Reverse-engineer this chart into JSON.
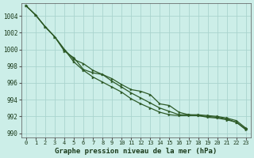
{
  "xlabel": "Graphe pression niveau de la mer (hPa)",
  "xlim": [
    -0.5,
    23.5
  ],
  "ylim": [
    989.5,
    1005.5
  ],
  "yticks": [
    990,
    992,
    994,
    996,
    998,
    1000,
    1002,
    1004
  ],
  "xticks": [
    0,
    1,
    2,
    3,
    4,
    5,
    6,
    7,
    8,
    9,
    10,
    11,
    12,
    13,
    14,
    15,
    16,
    17,
    18,
    19,
    20,
    21,
    22,
    23
  ],
  "background_color": "#cceee8",
  "grid_color": "#aad4ce",
  "line_color": "#2d5a27",
  "series1": [
    1005.2,
    1004.1,
    1002.7,
    1001.5,
    999.8,
    999.0,
    997.6,
    997.2,
    997.0,
    996.5,
    995.8,
    995.2,
    995.0,
    994.6,
    993.5,
    993.3,
    992.5,
    992.2,
    992.1,
    991.9,
    991.8,
    991.6,
    991.3,
    990.5
  ],
  "series2": [
    1005.2,
    1004.1,
    1002.7,
    1001.5,
    1000.0,
    998.5,
    997.5,
    996.7,
    996.1,
    995.5,
    994.9,
    994.1,
    993.5,
    993.0,
    992.5,
    992.2,
    992.1,
    992.1,
    992.1,
    992.0,
    991.9,
    991.7,
    991.3,
    990.4
  ],
  "series3": [
    1005.2,
    1004.1,
    1002.7,
    1001.5,
    1000.0,
    998.8,
    998.3,
    997.5,
    997.0,
    996.2,
    995.5,
    994.8,
    994.2,
    993.6,
    993.0,
    992.6,
    992.2,
    992.2,
    992.2,
    992.1,
    992.0,
    991.8,
    991.5,
    990.6
  ]
}
